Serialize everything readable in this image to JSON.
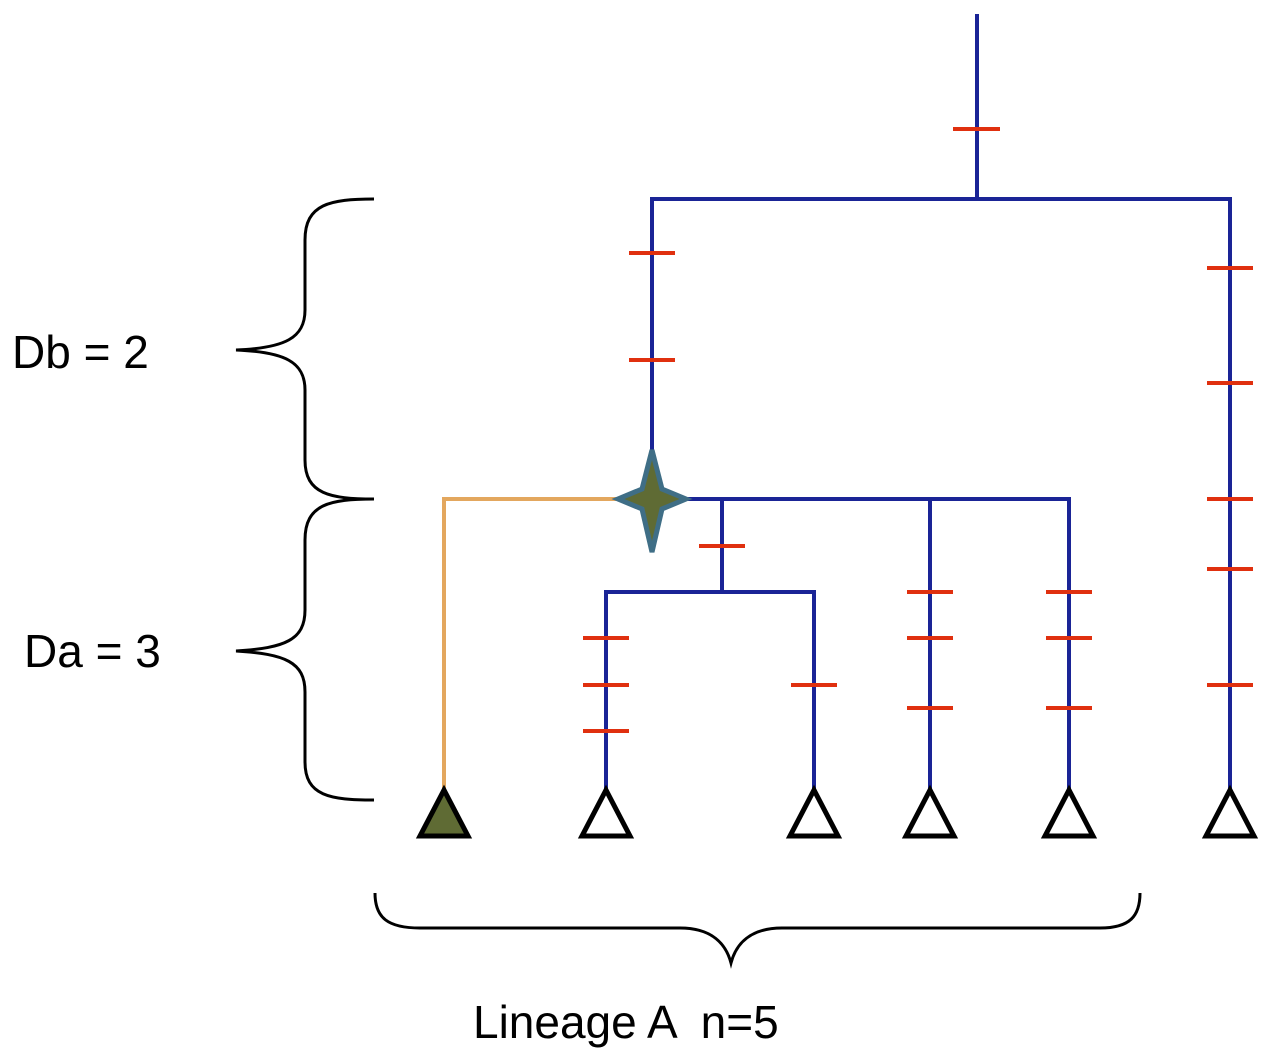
{
  "labels": {
    "db": "Db = 2",
    "da": "Da = 3",
    "lineage": "Lineage A  n=5"
  },
  "colors": {
    "branch": "#1a2496",
    "highlight_branch": "#e3a75e",
    "mutation": "#e0300f",
    "node_fill": "#5f6b34",
    "node_stroke": "#3f6e86",
    "tip_outline": "#000000",
    "brace": "#000000"
  },
  "tips": [
    {
      "name": "tip-1",
      "filled": true
    },
    {
      "name": "tip-2",
      "filled": false
    },
    {
      "name": "tip-3",
      "filled": false
    },
    {
      "name": "tip-4",
      "filled": false
    },
    {
      "name": "tip-5",
      "filled": false
    },
    {
      "name": "tip-6",
      "filled": false
    }
  ],
  "mutation_counts": {
    "root": 1,
    "left-clade": 2,
    "right-outgroup": 5,
    "internal-a": 1,
    "tip-2": 3,
    "tip-3": 1,
    "tip-4": 3,
    "tip-5": 3
  },
  "icons": {
    "ancestor_node": "four-point-star-icon",
    "tip": "triangle-icon"
  }
}
